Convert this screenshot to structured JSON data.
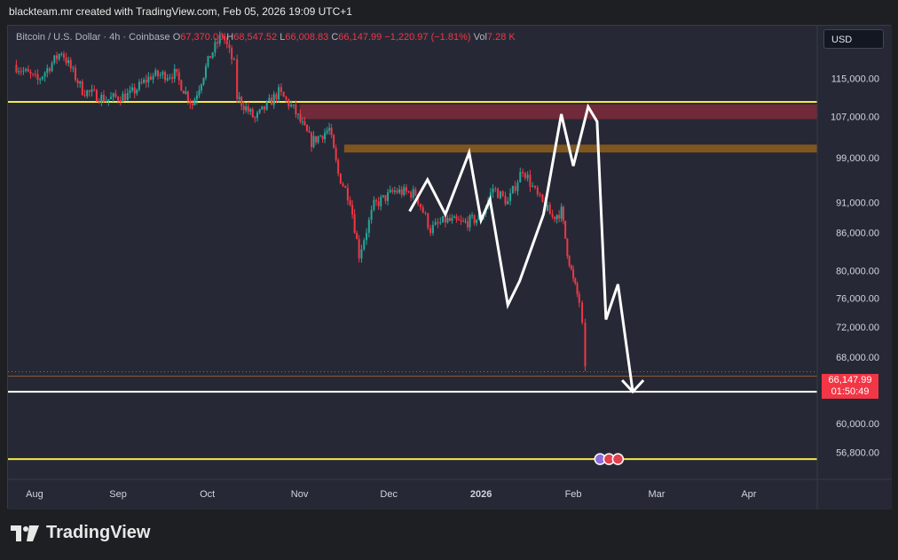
{
  "caption": "blackteam.mr created with TradingView.com, Feb 05, 2026 19:09 UTC+1",
  "legend": {
    "symbol": "Bitcoin / U.S. Dollar · 4h · Coinbase",
    "o_label": "O",
    "o_value": "67,370.00",
    "h_label": "H",
    "h_value": "68,547.52",
    "l_label": "L",
    "l_value": "66,008.83",
    "c_label": "C",
    "c_value": "66,147.99",
    "change": "−1,220.97 (−1.81%)",
    "vol_label": "Vol",
    "vol_value": "7.28 K"
  },
  "currency": "USD",
  "brand": "TradingView",
  "last_price": {
    "price": "66,147.99",
    "countdown": "01:50:49"
  },
  "colors": {
    "background": "#262935",
    "up": "#26a69a",
    "down": "#f23645",
    "yellow_line": "#f5e94a",
    "resistance_zone": "#7a2a3a",
    "mid_zone": "#8a5a1e",
    "projection": "#ffffff"
  },
  "chart_data": {
    "type": "line",
    "x_axis": {
      "ticks": [
        "Aug",
        "Sep",
        "Oct",
        "Nov",
        "Dec",
        "2026",
        "Feb",
        "Mar",
        "Apr"
      ],
      "tick_dates": [
        "2025-08-01",
        "2025-09-01",
        "2025-10-01",
        "2025-11-01",
        "2025-12-01",
        "2026-01-01",
        "2026-02-01",
        "2026-03-01",
        "2026-04-01"
      ]
    },
    "y_axis": {
      "scale": "log",
      "ticks": [
        "115,000.00",
        "107,000.00",
        "99,000.00",
        "91,000.00",
        "86,000.00",
        "80,000.00",
        "76,000.00",
        "72,000.00",
        "68,000.00",
        "60,000.00",
        "56,800.00"
      ],
      "tick_values": [
        115000,
        107000,
        99000,
        91000,
        86000,
        80000,
        76000,
        72000,
        68000,
        60000,
        56800
      ],
      "range": [
        54000,
        127000
      ]
    },
    "series": [
      {
        "type": "candlestick",
        "points": [
          [
            "2025-07-28",
            118000
          ],
          [
            "2025-08-05",
            114500
          ],
          [
            "2025-08-13",
            121000
          ],
          [
            "2025-08-20",
            112500
          ],
          [
            "2025-08-28",
            110500
          ],
          [
            "2025-09-05",
            111500
          ],
          [
            "2025-09-12",
            115500
          ],
          [
            "2025-09-20",
            116000
          ],
          [
            "2025-09-26",
            109500
          ],
          [
            "2025-10-02",
            120000
          ],
          [
            "2025-10-06",
            125000
          ],
          [
            "2025-10-10",
            118000
          ],
          [
            "2025-10-11",
            111000
          ],
          [
            "2025-10-17",
            106500
          ],
          [
            "2025-10-25",
            112000
          ],
          [
            "2025-10-30",
            108500
          ],
          [
            "2025-11-05",
            102000
          ],
          [
            "2025-11-11",
            104500
          ],
          [
            "2025-11-14",
            96000
          ],
          [
            "2025-11-18",
            91500
          ],
          [
            "2025-11-21",
            82500
          ],
          [
            "2025-11-26",
            90500
          ],
          [
            "2025-12-03",
            93000
          ],
          [
            "2025-12-10",
            92500
          ],
          [
            "2025-12-15",
            86500
          ],
          [
            "2025-12-20",
            88000
          ],
          [
            "2025-12-26",
            87500
          ],
          [
            "2026-01-01",
            88500
          ],
          [
            "2026-01-05",
            93500
          ],
          [
            "2026-01-10",
            91000
          ],
          [
            "2026-01-15",
            97000
          ],
          [
            "2026-01-20",
            92000
          ],
          [
            "2026-01-25",
            88500
          ],
          [
            "2026-01-28",
            89500
          ],
          [
            "2026-01-30",
            83000
          ],
          [
            "2026-02-01",
            78500
          ],
          [
            "2026-02-03",
            75500
          ],
          [
            "2026-02-04",
            72000
          ],
          [
            "2026-02-05",
            66148
          ]
        ]
      }
    ],
    "horizontal_lines": [
      {
        "price": 110000,
        "color": "#f5e94a"
      },
      {
        "price": 63700,
        "color": "#ffffff"
      },
      {
        "price": 56100,
        "color": "#f5e94a"
      },
      {
        "price": 65600,
        "color": "#8a5a3a"
      }
    ],
    "zones": [
      {
        "from": "2025-11-01",
        "to": "end",
        "top": 109500,
        "bottom": 106500,
        "color": "#7a2a3a"
      },
      {
        "from": "2025-11-16",
        "to": "end",
        "top": 101500,
        "bottom": 100000,
        "color": "#8a5a1e"
      }
    ],
    "projection_path": [
      [
        "2025-12-08",
        89500
      ],
      [
        "2025-12-14",
        95000
      ],
      [
        "2025-12-20",
        89000
      ],
      [
        "2025-12-28",
        100000
      ],
      [
        "2026-01-01",
        88000
      ],
      [
        "2026-01-04",
        91500
      ],
      [
        "2026-01-10",
        75000
      ],
      [
        "2026-01-14",
        78500
      ],
      [
        "2026-01-22",
        89000
      ],
      [
        "2026-01-28",
        107500
      ],
      [
        "2026-02-01",
        97500
      ],
      [
        "2026-02-06",
        109000
      ],
      [
        "2026-02-09",
        106000
      ],
      [
        "2026-02-12",
        73000
      ],
      [
        "2026-02-16",
        78000
      ],
      [
        "2026-02-21",
        63700
      ]
    ]
  }
}
